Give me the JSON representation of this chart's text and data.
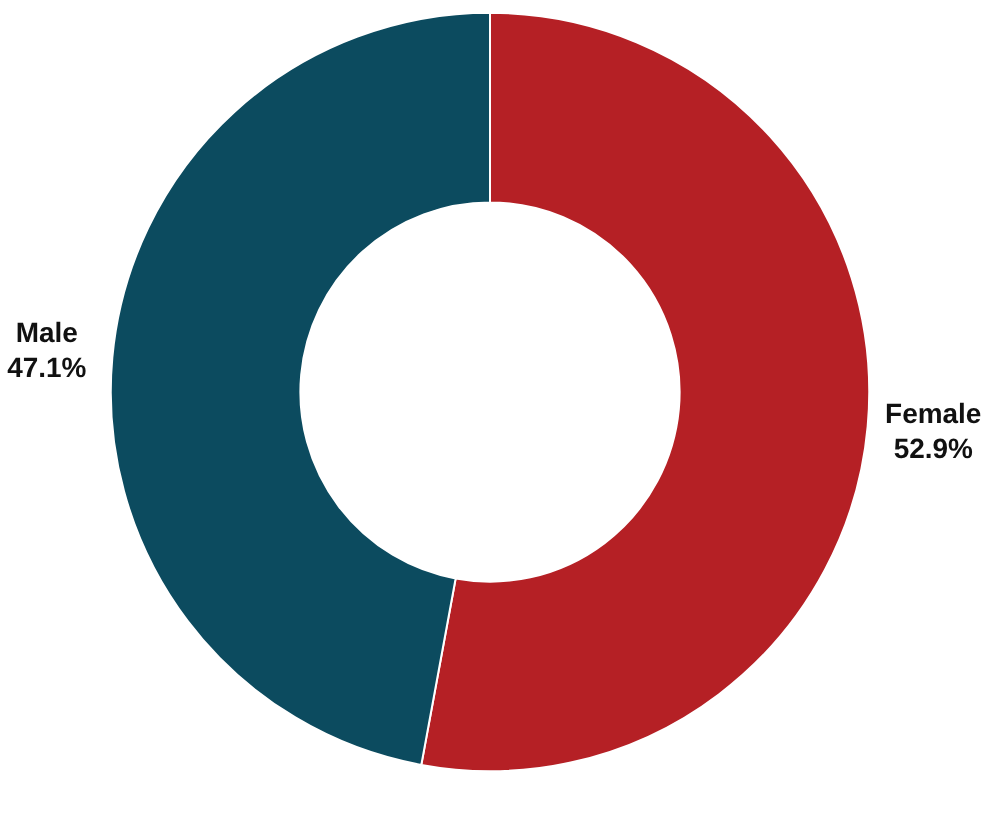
{
  "chart_data": {
    "type": "donut",
    "categories": [
      "Female",
      "Male"
    ],
    "values": [
      52.9,
      47.1
    ],
    "colors": [
      "#b52025",
      "#0c4b5f"
    ],
    "value_labels": [
      "52.9%",
      "47.1%"
    ]
  }
}
